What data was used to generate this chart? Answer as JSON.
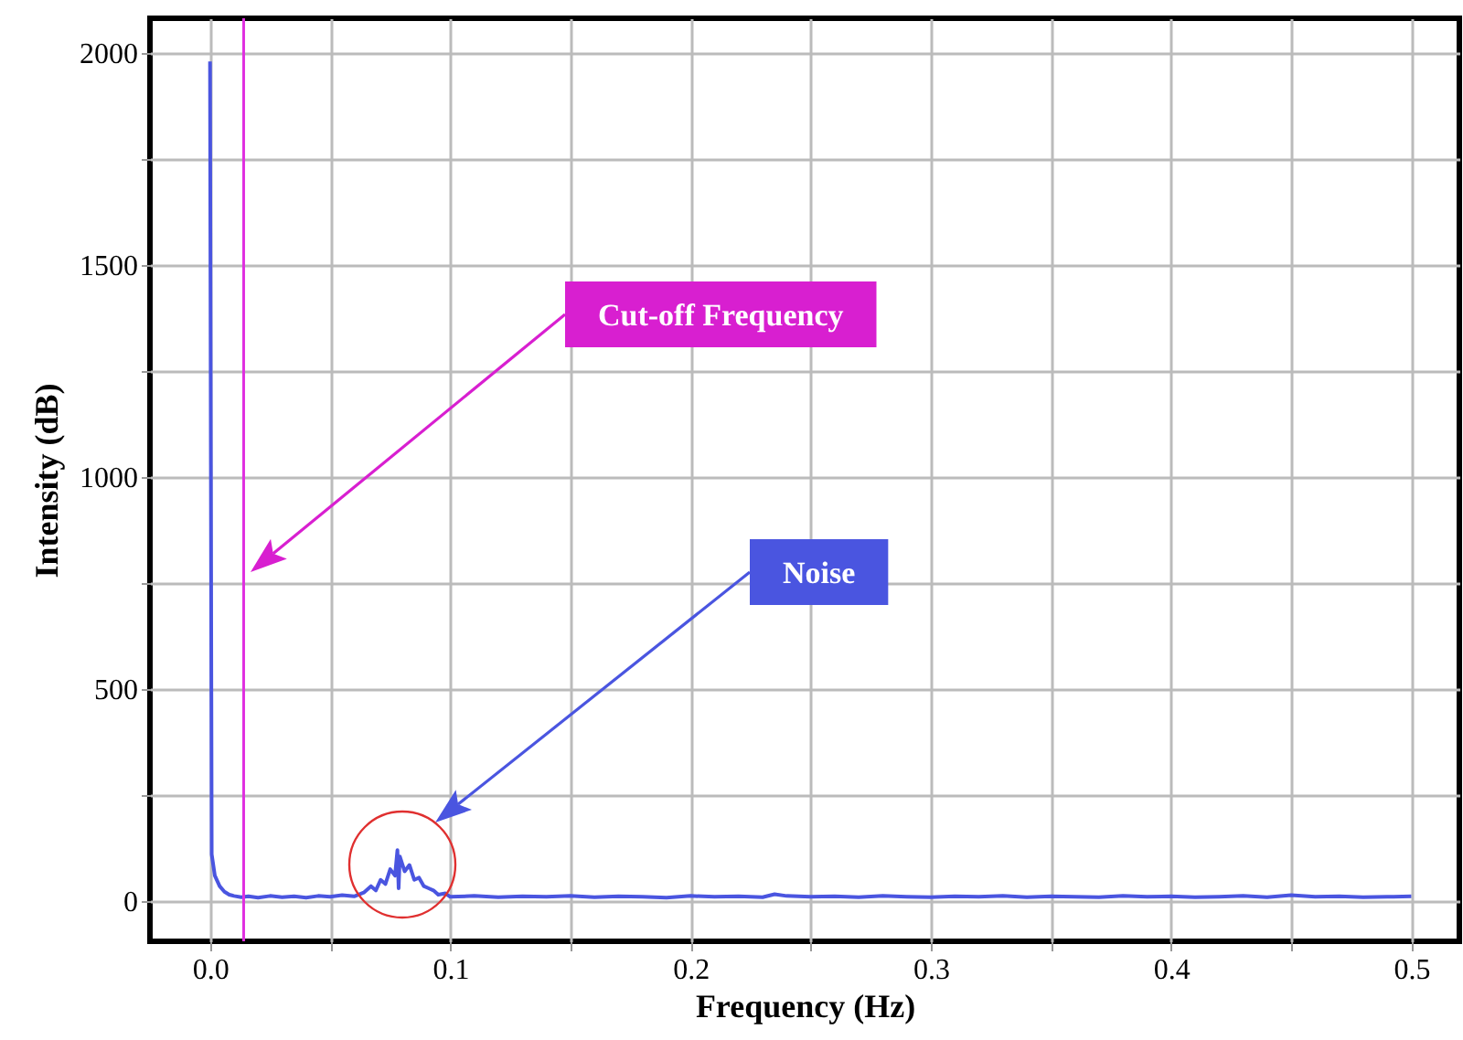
{
  "chart_data": {
    "type": "line",
    "xlabel": "Frequency (Hz)",
    "ylabel": "Intensity (dB)",
    "x": [
      0,
      0.0007,
      0.002,
      0.004,
      0.006,
      0.008,
      0.01,
      0.013,
      0.016,
      0.02,
      0.025,
      0.03,
      0.035,
      0.04,
      0.045,
      0.05,
      0.055,
      0.06,
      0.064,
      0.067,
      0.069,
      0.071,
      0.073,
      0.075,
      0.077,
      0.078,
      0.0785,
      0.079,
      0.081,
      0.083,
      0.085,
      0.087,
      0.089,
      0.091,
      0.093,
      0.095,
      0.098,
      0.1,
      0.11,
      0.12,
      0.13,
      0.14,
      0.15,
      0.16,
      0.17,
      0.18,
      0.19,
      0.2,
      0.21,
      0.22,
      0.23,
      0.235,
      0.24,
      0.25,
      0.26,
      0.27,
      0.28,
      0.29,
      0.3,
      0.31,
      0.32,
      0.33,
      0.34,
      0.35,
      0.36,
      0.37,
      0.38,
      0.39,
      0.4,
      0.41,
      0.42,
      0.43,
      0.44,
      0.45,
      0.46,
      0.47,
      0.48,
      0.49,
      0.5
    ],
    "series": [
      {
        "color": "#4a55e0",
        "values": [
          1980,
          110,
          60,
          35,
          22,
          15,
          12,
          9,
          11,
          8,
          12,
          9,
          11,
          8,
          12,
          10,
          14,
          11,
          20,
          35,
          25,
          50,
          40,
          75,
          60,
          120,
          30,
          105,
          70,
          85,
          50,
          55,
          35,
          30,
          25,
          15,
          18,
          10,
          12,
          9,
          11,
          10,
          12,
          9,
          11,
          10,
          8,
          12,
          10,
          11,
          9,
          16,
          12,
          10,
          11,
          9,
          12,
          10,
          9,
          11,
          10,
          12,
          9,
          11,
          10,
          9,
          12,
          10,
          11,
          9,
          10,
          12,
          9,
          14,
          10,
          11,
          9,
          10,
          11
        ]
      }
    ],
    "xlim": [
      -0.025,
      0.52
    ],
    "ylim": [
      -95,
      2082
    ],
    "xticks": [
      {
        "value": 0,
        "label": "0.0"
      },
      {
        "value": 0.05,
        "label": null
      },
      {
        "value": 0.1,
        "label": "0.1"
      },
      {
        "value": 0.15,
        "label": null
      },
      {
        "value": 0.2,
        "label": "0.2"
      },
      {
        "value": 0.25,
        "label": null
      },
      {
        "value": 0.3,
        "label": "0.3"
      },
      {
        "value": 0.35,
        "label": null
      },
      {
        "value": 0.4,
        "label": "0.4"
      },
      {
        "value": 0.45,
        "label": null
      },
      {
        "value": 0.5,
        "label": "0.5"
      }
    ],
    "yticks": [
      0,
      {
        "value": 250,
        "label": null
      },
      500,
      {
        "value": 750,
        "label": null
      },
      1000,
      {
        "value": 1250,
        "label": null
      },
      1500,
      {
        "value": 1750,
        "label": null
      },
      2000
    ],
    "ref_lines": [
      {
        "axis": "x",
        "value": 0.014,
        "color": "#e030e0"
      }
    ],
    "annotations": [
      "Cut-off Frequency",
      "Noise"
    ],
    "grid": true
  }
}
